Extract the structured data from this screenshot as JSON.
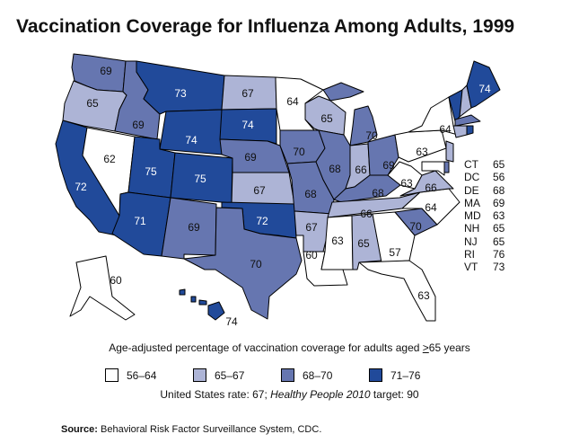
{
  "title": "Vaccination Coverage for Influenza Among Adults, 1999",
  "colors": {
    "56–64": "#ffffff",
    "65–67": "#adb4d6",
    "68–70": "#6676b0",
    "71–76": "#214a9a"
  },
  "states": {
    "WA": 69,
    "OR": 65,
    "CA": 72,
    "NV": 62,
    "ID": 69,
    "MT": 73,
    "WY": 74,
    "UT": 75,
    "CO": 75,
    "AZ": 71,
    "NM": 69,
    "ND": 67,
    "SD": 74,
    "NE": 69,
    "KS": 67,
    "OK": 72,
    "TX": 70,
    "MN": 64,
    "IA": 70,
    "MO": 68,
    "AR": 67,
    "LA": 60,
    "WI": 65,
    "IL": 68,
    "MI": 70,
    "IN": 66,
    "OH": 69,
    "KY": 68,
    "TN": 66,
    "MS": 63,
    "AL": 65,
    "GA": 57,
    "FL": 63,
    "SC": 70,
    "NC": 64,
    "VA": 66,
    "WV": 63,
    "PA": 63,
    "NY": 64,
    "ME": 74,
    "AK": 60,
    "HI": 74,
    "CT": 65,
    "DC": 56,
    "DE": 68,
    "MA": 69,
    "MD": 63,
    "NH": 65,
    "NJ": 65,
    "RI": 76,
    "VT": 73
  },
  "small_states_table": [
    {
      "state": "CT",
      "value": "65"
    },
    {
      "state": "DC",
      "value": "56"
    },
    {
      "state": "DE",
      "value": "68"
    },
    {
      "state": "MA",
      "value": "69"
    },
    {
      "state": "MD",
      "value": "63"
    },
    {
      "state": "NH",
      "value": "65"
    },
    {
      "state": "NJ",
      "value": "65"
    },
    {
      "state": "RI",
      "value": "76"
    },
    {
      "state": "VT",
      "value": "73"
    }
  ],
  "legend": {
    "title_prefix": "Age-adjusted percentage of vaccination coverage for adults aged ",
    "title_ge": ">",
    "title_suffix": "65 years",
    "bins": [
      {
        "label": "56–64",
        "color": "#ffffff"
      },
      {
        "label": "65–67",
        "color": "#adb4d6"
      },
      {
        "label": "68–70",
        "color": "#6676b0"
      },
      {
        "label": "71–76",
        "color": "#214a9a"
      }
    ]
  },
  "rate": {
    "prefix": "United States rate: 67; ",
    "italic": "Healthy People 2010",
    "suffix": " target: 90"
  },
  "source": {
    "label": "Source:",
    "text": " Behavioral Risk Factor Surveillance System, CDC."
  }
}
